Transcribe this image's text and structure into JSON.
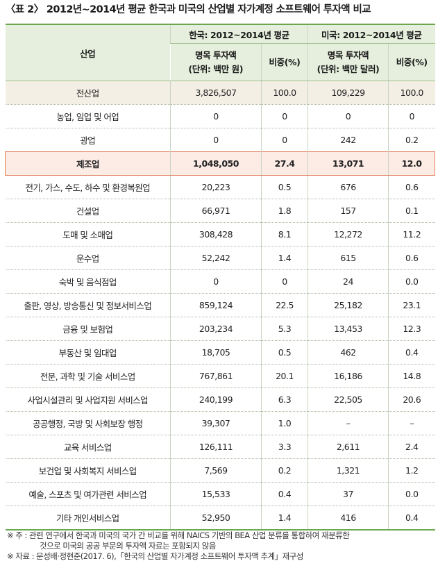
{
  "title": "〈표 2〉 2012년~2014년 평균 한국과 미국의 산업별 자가계정 소프트웨어 투자액 비교",
  "header": {
    "industry": "산업",
    "korea_group": "한국: 2012~2014년 평균",
    "us_group": "미국: 2012~2014년 평균",
    "korea_amount_line1": "명목 투자액",
    "korea_amount_line2": "(단위: 백만 원)",
    "korea_share": "비중(%)",
    "us_amount_line1": "명목 투자액",
    "us_amount_line2": "(단위: 백만 달러)",
    "us_share": "비중(%)"
  },
  "rows": [
    {
      "name": "전산업",
      "kr_amount": "3,826,507",
      "kr_share": "100.0",
      "us_amount": "109,229",
      "us_share": "100.0"
    },
    {
      "name": "농업, 임업 및 어업",
      "kr_amount": "0",
      "kr_share": "0",
      "us_amount": "0",
      "us_share": "0"
    },
    {
      "name": "광업",
      "kr_amount": "0",
      "kr_share": "0",
      "us_amount": "242",
      "us_share": "0.2"
    },
    {
      "name": "제조업",
      "kr_amount": "1,048,050",
      "kr_share": "27.4",
      "us_amount": "13,071",
      "us_share": "12.0"
    },
    {
      "name": "전기, 가스, 수도, 하수 및 환경복원업",
      "kr_amount": "20,223",
      "kr_share": "0.5",
      "us_amount": "676",
      "us_share": "0.6"
    },
    {
      "name": "건설업",
      "kr_amount": "66,971",
      "kr_share": "1.8",
      "us_amount": "157",
      "us_share": "0.1"
    },
    {
      "name": "도매 및 소매업",
      "kr_amount": "308,428",
      "kr_share": "8.1",
      "us_amount": "12,272",
      "us_share": "11.2"
    },
    {
      "name": "운수업",
      "kr_amount": "52,242",
      "kr_share": "1.4",
      "us_amount": "615",
      "us_share": "0.6"
    },
    {
      "name": "숙박 및 음식점업",
      "kr_amount": "0",
      "kr_share": "0",
      "us_amount": "24",
      "us_share": "0.0"
    },
    {
      "name": "출판, 영상, 방송통신 및 정보서비스업",
      "kr_amount": "859,124",
      "kr_share": "22.5",
      "us_amount": "25,182",
      "us_share": "23.1"
    },
    {
      "name": "금융 및 보험업",
      "kr_amount": "203,234",
      "kr_share": "5.3",
      "us_amount": "13,453",
      "us_share": "12.3"
    },
    {
      "name": "부동산 및 임대업",
      "kr_amount": "18,705",
      "kr_share": "0.5",
      "us_amount": "462",
      "us_share": "0.4"
    },
    {
      "name": "전문, 과학 및 기술 서비스업",
      "kr_amount": "767,861",
      "kr_share": "20.1",
      "us_amount": "16,186",
      "us_share": "14.8"
    },
    {
      "name": "사업시설관리 및 사업지원 서비스업",
      "kr_amount": "240,199",
      "kr_share": "6.3",
      "us_amount": "22,505",
      "us_share": "20.6"
    },
    {
      "name": "공공행정, 국방 및 사회보장 행정",
      "kr_amount": "39,307",
      "kr_share": "1.0",
      "us_amount": "–",
      "us_share": "–"
    },
    {
      "name": "교육 서비스업",
      "kr_amount": "126,111",
      "kr_share": "3.3",
      "us_amount": "2,611",
      "us_share": "2.4"
    },
    {
      "name": "보건업 및 사회복지 서비스업",
      "kr_amount": "7,569",
      "kr_share": "0.2",
      "us_amount": "1,321",
      "us_share": "1.2"
    },
    {
      "name": "예술, 스포츠 및 여가관련 서비스업",
      "kr_amount": "15,533",
      "kr_share": "0.4",
      "us_amount": "37",
      "us_share": "0.0"
    },
    {
      "name": "기타 개인서비스업",
      "kr_amount": "52,950",
      "kr_share": "1.4",
      "us_amount": "416",
      "us_share": "0.4"
    }
  ],
  "notes": {
    "note_line1": "※ 주 : 관련 연구에서 한국과 미국의 국가 간 비교를 위해 NAICS 기반의 BEA 산업 분류를 통합하여 재분류한",
    "note_line2": "것으로 미국의 공공 부문의 투자액 자료는 포함되지 않음",
    "source": "※ 자료 : 문성배·정현준(2017. 6),「한국의 산업별 자가계정 소프트웨어 투자액 추계」재구성"
  }
}
